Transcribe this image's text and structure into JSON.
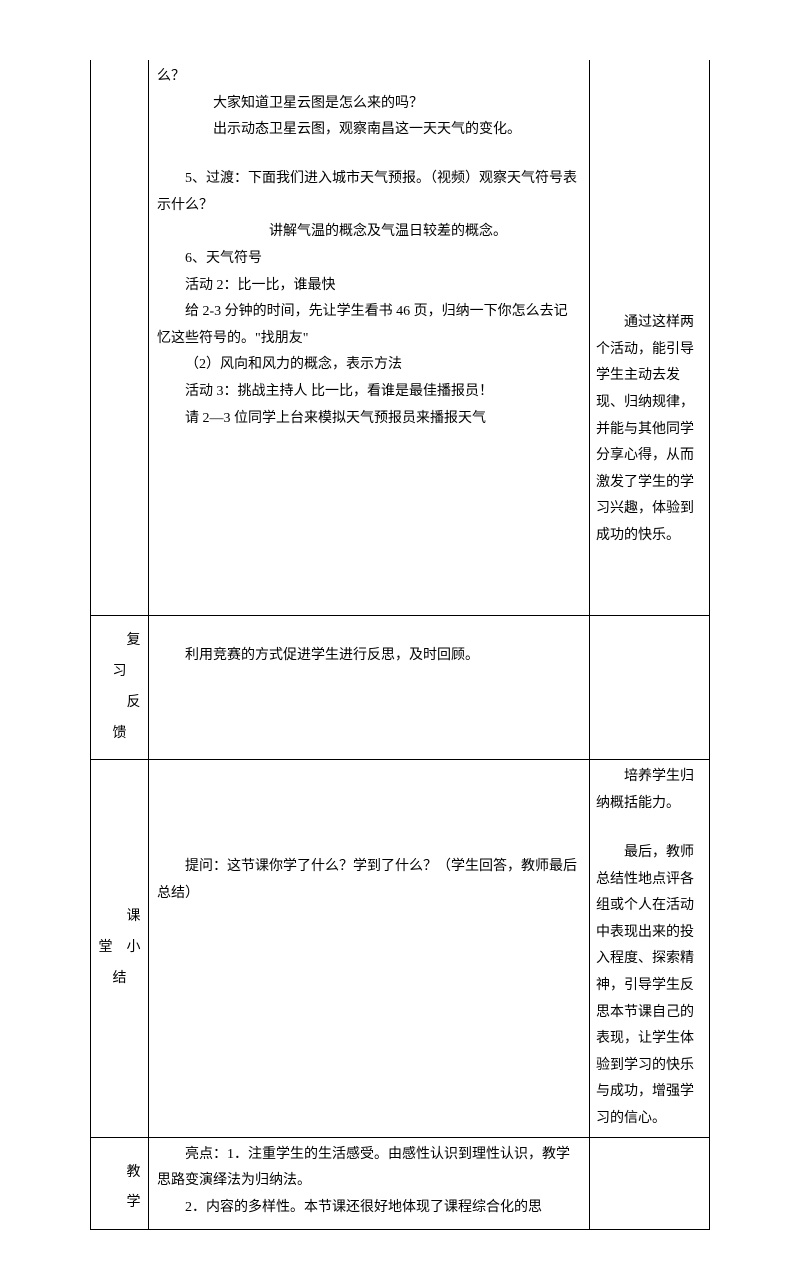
{
  "rows": [
    {
      "label": "",
      "main": [
        {
          "text": "么？",
          "cls": ""
        },
        {
          "text": "大家知道卫星云图是怎么来的吗？",
          "cls": "indent2"
        },
        {
          "text": "出示动态卫星云图，观察南昌这一天天气的变化。",
          "cls": "indent2"
        },
        {
          "text": "",
          "cls": "spacer"
        },
        {
          "text": "5、过渡：下面我们进入城市天气预报。（视频）观察天气符号表示什么？",
          "cls": "indent1"
        },
        {
          "text": "讲解气温的概念及气温日较差的概念。",
          "cls": "indent3"
        },
        {
          "text": "6、天气符号",
          "cls": "indent1"
        },
        {
          "text": "活动 2：比一比，谁最快",
          "cls": "indent1"
        },
        {
          "text": "给 2-3 分钟的时间，先让学生看书 46 页，归纳一下你怎么去记忆这些符号的。\"找朋友\"",
          "cls": "indent1"
        },
        {
          "text": "（2）风向和风力的概念，表示方法",
          "cls": "indent1"
        },
        {
          "text": "活动 3：挑战主持人  比一比，看谁是最佳播报员！",
          "cls": "indent1"
        },
        {
          "text": "请 2—3 位同学上台来模拟天气预报员来播报天气",
          "cls": "indent1"
        },
        {
          "text": "",
          "cls": "spacer"
        },
        {
          "text": "",
          "cls": "spacer"
        },
        {
          "text": "",
          "cls": "spacer"
        },
        {
          "text": "",
          "cls": "spacer"
        },
        {
          "text": "",
          "cls": "spacer"
        },
        {
          "text": "",
          "cls": "spacer"
        },
        {
          "text": "",
          "cls": "spacer"
        },
        {
          "text": "",
          "cls": "spacer"
        }
      ],
      "right": [
        {
          "text": "",
          "cls": "spacer"
        },
        {
          "text": "",
          "cls": "spacer"
        },
        {
          "text": "",
          "cls": "spacer"
        },
        {
          "text": "",
          "cls": "spacer"
        },
        {
          "text": "",
          "cls": "spacer"
        },
        {
          "text": "",
          "cls": "spacer"
        },
        {
          "text": "",
          "cls": "spacer"
        },
        {
          "text": "",
          "cls": "spacer"
        },
        {
          "text": "",
          "cls": "spacer"
        },
        {
          "text": "",
          "cls": "spacer"
        },
        {
          "text": "",
          "cls": "spacer"
        },
        {
          "text": "通过这样两个活动，能引导学生主动去发现、归纳规律，并能与其他同学分享心得，从而激发了学生的学习兴趣，体验到成功的快乐。",
          "cls": "indent1"
        }
      ]
    },
    {
      "label": "复习　反馈",
      "labelLines": [
        "　　复",
        "习",
        "　　反",
        "馈"
      ],
      "main": [
        {
          "text": "",
          "cls": "spacer"
        },
        {
          "text": "利用竞赛的方式促进学生进行反思，及时回顾。",
          "cls": "indent1"
        },
        {
          "text": "",
          "cls": "spacer"
        }
      ],
      "right": []
    },
    {
      "label": "课堂小结",
      "labelLines": [
        "",
        "",
        "",
        "",
        "　　课",
        "堂　小",
        "结"
      ],
      "main": [
        {
          "text": "",
          "cls": "spacer"
        },
        {
          "text": "",
          "cls": "spacer"
        },
        {
          "text": "",
          "cls": "spacer"
        },
        {
          "text": "",
          "cls": "spacer"
        },
        {
          "text": "提问：这节课你学了什么？学到了什么？（学生回答，教师最后总结）",
          "cls": "indent1"
        },
        {
          "text": "",
          "cls": "spacer"
        },
        {
          "text": "",
          "cls": "spacer"
        },
        {
          "text": "",
          "cls": "spacer"
        },
        {
          "text": "",
          "cls": "spacer"
        },
        {
          "text": "",
          "cls": "spacer"
        },
        {
          "text": "",
          "cls": "spacer"
        }
      ],
      "right": [
        {
          "text": "培养学生归纳概括能力。",
          "cls": "indent1"
        },
        {
          "text": "",
          "cls": "spacer"
        },
        {
          "text": "最后，教师总结性地点评各组或个人在活动中表现出来的投入程度、探索精神，引导学生反思本节课自己的表现，让学生体验到学习的快乐与成功，增强学习的信心。",
          "cls": "indent1"
        }
      ]
    },
    {
      "label": "教学",
      "labelLines": [
        "",
        "　　教",
        "　　学"
      ],
      "main": [
        {
          "text": "亮点：1．注重学生的生活感受。由感性认识到理性认识，教学思路变演绎法为归纳法。",
          "cls": "indent1"
        },
        {
          "text": "2．内容的多样性。本节课还很好地体现了课程综合化的思",
          "cls": "indent1"
        }
      ],
      "right": []
    }
  ]
}
